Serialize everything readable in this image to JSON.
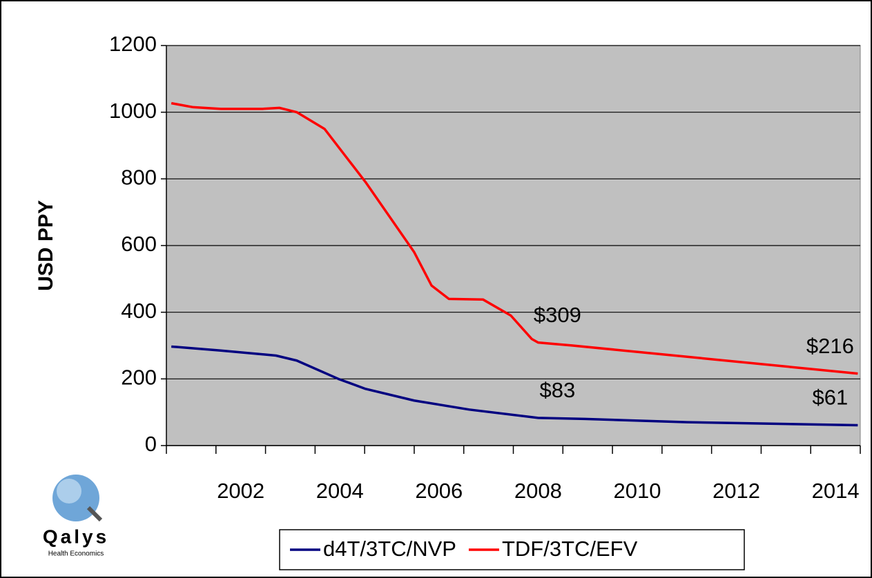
{
  "chart_data": {
    "type": "line",
    "ylabel": "USD PPY",
    "xlim": [
      2000.5,
      2014.5
    ],
    "xticks": [
      2002,
      2004,
      2006,
      2008,
      2010,
      2012,
      2014
    ],
    "ylim": [
      0,
      1200
    ],
    "yticks": [
      0,
      200,
      400,
      600,
      800,
      1000,
      1200
    ],
    "grid": true,
    "plot_background": "#c0c0c0",
    "legend": "bottom",
    "series": [
      {
        "name": "d4T/3TC/NVP",
        "color": "#000080",
        "x": [
          2000.6,
          2001.6,
          2002.71,
          2003.13,
          2003.97,
          2004.52,
          2005.5,
          2006.61,
          2008,
          2008.94,
          2011.01,
          2014.45
        ],
        "values": [
          297,
          285,
          270,
          255,
          200,
          170,
          135,
          108,
          83,
          80,
          70,
          61
        ],
        "value_labels": [
          null,
          null,
          null,
          null,
          null,
          null,
          null,
          null,
          "$83",
          null,
          null,
          "$61"
        ]
      },
      {
        "name": "TDF/3TC/EFV",
        "color": "#ff0000",
        "x": [
          2000.6,
          2001.04,
          2001.6,
          2002.44,
          2002.78,
          2003.13,
          2003.69,
          2004.52,
          2004.94,
          2005.5,
          2005.85,
          2006.2,
          2006.89,
          2007.45,
          2007.87,
          2008,
          2008.7,
          2014.45
        ],
        "values": [
          1027,
          1015,
          1010,
          1010,
          1013,
          1000,
          950,
          790,
          700,
          580,
          480,
          440,
          438,
          390,
          320,
          309,
          300,
          216
        ],
        "value_labels": [
          null,
          null,
          null,
          null,
          null,
          null,
          null,
          null,
          null,
          null,
          null,
          null,
          null,
          null,
          null,
          "$309",
          null,
          "$216"
        ]
      }
    ]
  },
  "logo": {
    "name": "Qalys",
    "tagline": "Health Economics"
  }
}
